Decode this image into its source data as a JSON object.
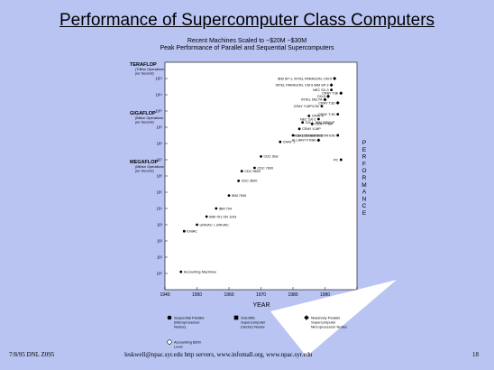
{
  "slide": {
    "title": "Performance of Supercomputer Class Computers",
    "subtitle1": "Recent Machines Scaled to ~$20M  ~$30M",
    "subtitle2": "Peak Performance of Parallel and Sequential Supercomputers",
    "footer_left": "7/8/95 DNL Z095",
    "footer_mid": "leskwell@npac.syr.edu    http servers, www.infomall.org, www.npac.syr.edu",
    "footer_page": "18"
  },
  "chart_data": {
    "type": "scatter",
    "xlabel": "YEAR",
    "xlim": [
      1940,
      2000
    ],
    "xticks": [
      1940,
      1950,
      1960,
      1970,
      1980,
      1990,
      2000
    ],
    "y_scale": "log10 FLOPS",
    "ylim": [
      -1,
      13
    ],
    "y_tick_labels": [
      {
        "exp": 12,
        "label": "10¹²"
      },
      {
        "exp": 11,
        "label": "10¹¹"
      },
      {
        "exp": 10,
        "label": "10¹⁰"
      },
      {
        "exp": 9,
        "label": "10⁹"
      },
      {
        "exp": 8,
        "label": "10⁸"
      },
      {
        "exp": 7,
        "label": "10⁷"
      },
      {
        "exp": 6,
        "label": "10⁶"
      },
      {
        "exp": 5,
        "label": "10⁵"
      },
      {
        "exp": 4,
        "label": "10⁴"
      },
      {
        "exp": 3,
        "label": "10³"
      },
      {
        "exp": 2,
        "label": "10²"
      },
      {
        "exp": 1,
        "label": "10¹"
      },
      {
        "exp": 0,
        "label": "10⁰"
      }
    ],
    "y_major_labels": [
      {
        "exp": 12,
        "title": "TERAFLOP",
        "note": "(Trillion Operations per Second)"
      },
      {
        "exp": 9,
        "title": "GIGAFLOP",
        "note": "(Billion Operations per Second)"
      },
      {
        "exp": 6,
        "title": "MEGAFLOP",
        "note": "(Million Operations per Second)"
      }
    ],
    "right_label": "PERFORMANCE",
    "points": [
      {
        "x": 1945,
        "y": 0.1,
        "label": "Accounting Machines",
        "kind": "seq"
      },
      {
        "x": 1946,
        "y": 2.6,
        "label": "ENIAC",
        "kind": "seq"
      },
      {
        "x": 1950,
        "y": 3.0,
        "label": "UNIVAC I, UNIVAC",
        "kind": "seq"
      },
      {
        "x": 1953,
        "y": 3.5,
        "label": "IBM 701 ON 1103",
        "kind": "seq"
      },
      {
        "x": 1956,
        "y": 4.0,
        "label": "IBM 704",
        "kind": "seq"
      },
      {
        "x": 1960,
        "y": 4.8,
        "label": "IBM 7090",
        "kind": "seq"
      },
      {
        "x": 1963,
        "y": 5.7,
        "label": "CDC 3600",
        "kind": "seq"
      },
      {
        "x": 1964,
        "y": 6.3,
        "label": "CDC 6600",
        "kind": "seq"
      },
      {
        "x": 1968,
        "y": 6.5,
        "label": "CDC 7600",
        "kind": "seq"
      },
      {
        "x": 1970,
        "y": 7.2,
        "label": "CDC Star",
        "kind": "seq"
      },
      {
        "x": 1976,
        "y": 8.1,
        "label": "CRAY 1",
        "kind": "seq"
      },
      {
        "x": 1980,
        "y": 8.5,
        "label": "CDC CYBER 205",
        "kind": "seq"
      },
      {
        "x": 1982,
        "y": 8.9,
        "label": "CRAY X-MP",
        "kind": "seq"
      },
      {
        "x": 1983,
        "y": 9.3,
        "label": "CM-1, IBM 3090VF",
        "kind": "seq"
      },
      {
        "x": 1985,
        "y": 9.7,
        "label": "CRAY-2",
        "kind": "seq"
      },
      {
        "x": 1986,
        "y": 9.2,
        "label": "CRAY Y-MP",
        "kind": "seq"
      },
      {
        "x": 1988,
        "y": 9.5,
        "label": "NEC SX-2",
        "kind": "seq"
      },
      {
        "x": 1988,
        "y": 8.2,
        "label": "ALLIANT FX/80",
        "kind": "mpp"
      },
      {
        "x": 1989,
        "y": 10.3,
        "label": "CRAY Y-MP/C90",
        "kind": "seq"
      },
      {
        "x": 1990,
        "y": 10.7,
        "label": "INTEL DELTA",
        "kind": "mpp"
      },
      {
        "x": 1991,
        "y": 10.9,
        "label": "CM-5",
        "kind": "mpp"
      },
      {
        "x": 1992,
        "y": 11.3,
        "label": "NEC SX-3",
        "kind": "seq"
      },
      {
        "x": 1992,
        "y": 11.6,
        "label": "INTEL PARAGON, CM-5 IBM SP-2",
        "kind": "mpp"
      },
      {
        "x": 1993,
        "y": 12.0,
        "label": "IBM SP-1, INTEL PARAGON, CM-5",
        "kind": "mpp"
      },
      {
        "x": 1994,
        "y": 10.5,
        "label": "CRAY T3D",
        "kind": "mpp"
      },
      {
        "x": 1994,
        "y": 9.8,
        "label": "CRAY T-90",
        "kind": "seq"
      },
      {
        "x": 1994,
        "y": 8.5,
        "label": "HIGH END WORKSTATION",
        "kind": "ws"
      },
      {
        "x": 1995,
        "y": 7.0,
        "label": "PC",
        "kind": "ws"
      },
      {
        "x": 1995,
        "y": 11.1,
        "label": "CRAY T3E",
        "kind": "mpp"
      }
    ],
    "legend": [
      {
        "marker": "circle-filled",
        "label": "Sequential Parallel (Microprocessor Nodes)"
      },
      {
        "marker": "square-filled",
        "label": "Scientific Supercomputer (Vector) Nodes"
      },
      {
        "marker": "diamond-filled",
        "label": "Massively Parallel Supercomputer Microprocessor Nodes"
      },
      {
        "marker": "circle-open",
        "label": "Accounting $300 Level"
      }
    ]
  }
}
